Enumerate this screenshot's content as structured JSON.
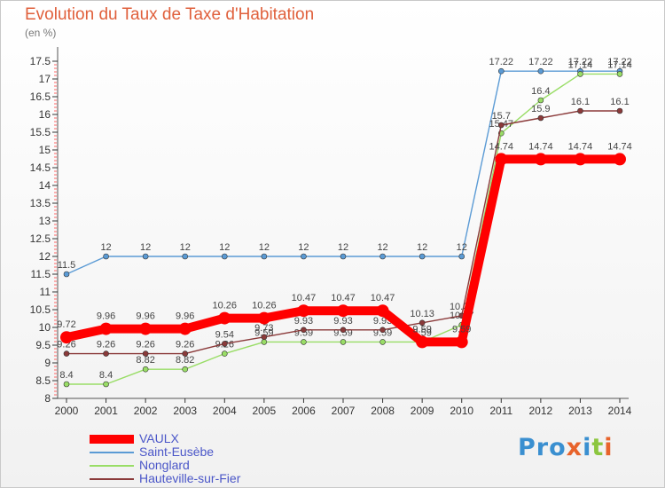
{
  "title": "Evolution du Taux de Taxe d'Habitation",
  "subtitle": "(en %)",
  "brand": {
    "parts": [
      {
        "text": "Pro",
        "color": "#3a8fd0"
      },
      {
        "text": "x",
        "color": "#e8632b"
      },
      {
        "text": "i",
        "color": "#3a8fd0"
      },
      {
        "text": "t",
        "color": "#8cc63f"
      },
      {
        "text": "i",
        "color": "#e8632b"
      }
    ]
  },
  "chart_data": {
    "type": "line",
    "x": [
      "2000",
      "2001",
      "2002",
      "2003",
      "2004",
      "2005",
      "2006",
      "2007",
      "2008",
      "2009",
      "2010",
      "2011",
      "2012",
      "2013",
      "2014"
    ],
    "ylim": [
      8,
      17.5
    ],
    "yticks": [
      "8",
      "8.5",
      "9",
      "9.5",
      "10",
      "10.5",
      "11",
      "11.5",
      "12",
      "12.5",
      "13",
      "13.5",
      "14",
      "14.5",
      "15",
      "15.5",
      "16",
      "16.5",
      "17",
      "17.5"
    ],
    "grid": false,
    "legend_position": "bottom-left",
    "series": [
      {
        "name": "VAULX",
        "color": "#ff0000",
        "values": [
          9.72,
          9.96,
          9.96,
          9.96,
          10.26,
          10.26,
          10.47,
          10.47,
          10.47,
          9.59,
          9.59,
          14.74,
          14.74,
          14.74,
          14.74
        ],
        "labels": [
          "9.72",
          "9.96",
          "9.96",
          "9.96",
          "10.26",
          "10.26",
          "10.47",
          "10.47",
          "10.47",
          "9.59",
          "9.59",
          "14.74",
          "14.74",
          "14.74",
          "14.74"
        ],
        "width": "thick"
      },
      {
        "name": "Saint-Eusèbe",
        "color": "#5b9bd5",
        "values": [
          11.5,
          12,
          12,
          12,
          12,
          12,
          12,
          12,
          12,
          12,
          12,
          17.22,
          17.22,
          17.22,
          17.22
        ],
        "labels": [
          "11.5",
          "12",
          "12",
          "12",
          "12",
          "12",
          "12",
          "12",
          "12",
          "12",
          "12",
          "17.22",
          "17.22",
          "17.22",
          "17.22"
        ],
        "width": "thin"
      },
      {
        "name": "Nonglard",
        "color": "#99dd66",
        "values": [
          8.4,
          8.4,
          8.82,
          8.82,
          9.26,
          9.59,
          9.59,
          9.59,
          9.59,
          9.59,
          10.07,
          15.47,
          16.4,
          17.14,
          17.14
        ],
        "labels": [
          "8.4",
          "8.4",
          "8.82",
          "8.82",
          "9.26",
          "9.59",
          "9.59",
          "9.59",
          "9.59",
          "9.59",
          "10.07",
          "15.47",
          "16.4",
          "17.14",
          "17.14"
        ],
        "width": "thin"
      },
      {
        "name": "Hauteville-sur-Fier",
        "color": "#8b3a3a",
        "values": [
          9.26,
          9.26,
          9.26,
          9.26,
          9.54,
          9.73,
          9.93,
          9.93,
          9.93,
          10.13,
          10.33,
          15.7,
          15.9,
          16.1,
          16.1
        ],
        "labels": [
          "9.26",
          "9.26",
          "9.26",
          "9.26",
          "9.54",
          "9.73",
          "9.93",
          "9.93",
          "9.93",
          "10.13",
          "10.33",
          "15.7",
          "15.9",
          "16.1",
          "16.1"
        ],
        "width": "thin"
      }
    ]
  }
}
